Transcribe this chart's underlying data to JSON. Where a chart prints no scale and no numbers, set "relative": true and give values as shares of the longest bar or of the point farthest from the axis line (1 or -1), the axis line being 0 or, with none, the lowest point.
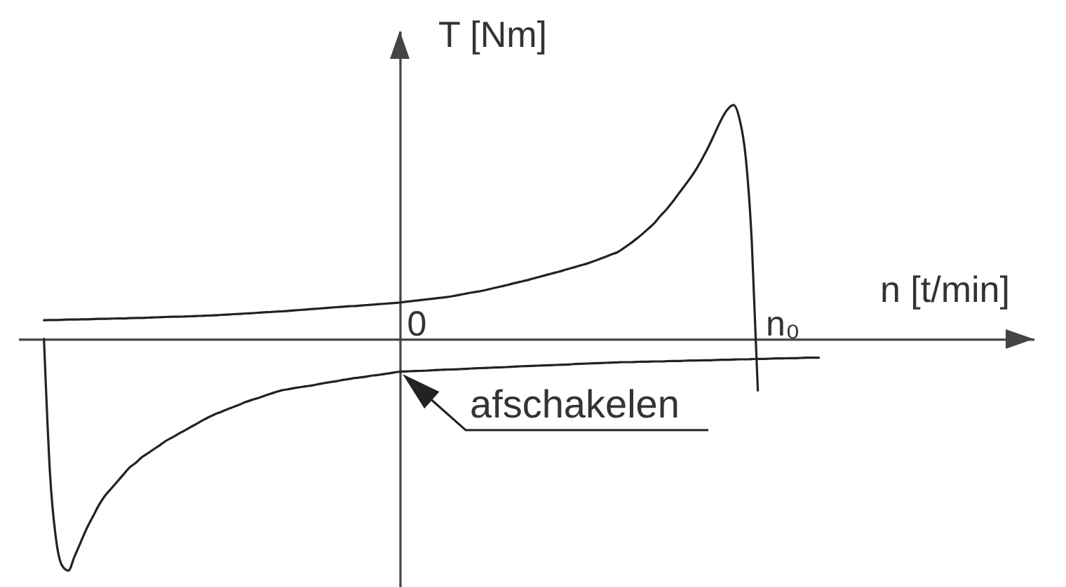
{
  "chart_data": {
    "type": "line",
    "xlabel": "n [t/min]",
    "ylabel": "T [Nm]",
    "relative": true,
    "line_style": "solid",
    "categories": [
      null,
      null,
      null,
      null,
      null,
      null,
      null,
      null,
      null,
      null,
      null,
      null,
      null,
      null,
      null,
      null,
      null,
      null,
      null,
      null,
      null,
      null,
      null,
      null,
      null,
      null,
      null,
      null,
      null,
      null,
      null,
      null,
      null,
      null,
      null,
      null,
      null,
      null,
      null,
      null,
      null,
      null,
      null,
      null,
      null,
      null,
      null,
      null,
      null,
      null,
      null,
      null,
      null,
      null,
      null,
      null,
      null,
      null,
      null,
      null,
      null,
      "0",
      null,
      null,
      null,
      null,
      null,
      null,
      null,
      null,
      null,
      null,
      null,
      null,
      null,
      null,
      null,
      null,
      null,
      null,
      null,
      null,
      null,
      null,
      null,
      null,
      null,
      null,
      null,
      null,
      null,
      null,
      null,
      null,
      null,
      null,
      null,
      null,
      null,
      null,
      null,
      null,
      null,
      null,
      null,
      null,
      null,
      null,
      null,
      null,
      null,
      null,
      null,
      null,
      null,
      null,
      null,
      null,
      null,
      null,
      null,
      "n₀",
      null,
      null,
      null,
      null,
      null,
      null,
      null,
      null,
      null,
      null,
      null,
      null,
      null,
      null,
      null,
      null,
      null,
      null,
      null,
      null,
      null,
      null,
      null,
      null,
      null,
      null,
      null,
      null,
      null,
      null,
      null,
      null,
      null,
      null,
      null,
      null,
      null
    ],
    "series": [
      {
        "color": "#222222",
        "values": [
          0.08,
          0.081,
          0.081,
          0.082,
          0.083,
          0.083,
          0.084,
          0.084,
          0.085,
          0.086,
          0.086,
          0.087,
          0.088,
          0.088,
          0.089,
          0.09,
          0.09,
          0.091,
          0.092,
          0.093,
          0.094,
          0.095,
          0.095,
          0.096,
          0.097,
          0.098,
          0.099,
          0.1,
          0.101,
          0.103,
          0.104,
          0.106,
          0.107,
          0.109,
          0.11,
          0.112,
          0.114,
          0.115,
          0.117,
          0.118,
          0.12,
          0.122,
          0.124,
          0.126,
          0.128,
          0.13,
          0.132,
          0.134,
          0.136,
          0.138,
          0.14,
          0.141,
          0.143,
          0.145,
          0.147,
          0.149,
          0.151,
          0.153,
          0.155,
          0.158,
          0.161,
          0.164,
          0.167,
          0.17,
          0.173,
          0.176,
          0.179,
          0.183,
          0.188,
          0.193,
          0.198,
          0.202,
          0.207,
          0.213,
          0.219,
          0.225,
          0.231,
          0.238,
          0.244,
          0.25,
          0.257,
          0.264,
          0.271,
          0.278,
          0.285,
          0.292,
          0.3,
          0.307,
          0.315,
          0.322,
          0.331,
          0.341,
          0.351,
          0.361,
          0.371,
          0.388,
          0.406,
          0.426,
          0.447,
          0.47,
          0.494,
          0.525,
          0.553,
          0.585,
          0.62,
          0.655,
          0.69,
          0.73,
          0.776,
          0.826,
          0.882,
          0.937,
          0.98,
          1.0,
          0.94,
          0.78,
          0.42,
          -0.22,
          null,
          null,
          null,
          null,
          null,
          null,
          null,
          null,
          null,
          null,
          null,
          null,
          null,
          null,
          null,
          null,
          null,
          null,
          null,
          null,
          null,
          null,
          null,
          null,
          null,
          null,
          null,
          null,
          null,
          null,
          null,
          null,
          null,
          null,
          null,
          null,
          null,
          null,
          null,
          null,
          null
        ]
      },
      {
        "color": "#222222",
        "values": [
          0,
          -0.58,
          -0.86,
          -0.97,
          -0.99,
          -0.93,
          -0.87,
          -0.81,
          -0.76,
          -0.71,
          -0.67,
          -0.64,
          -0.61,
          -0.58,
          -0.55,
          -0.53,
          -0.506,
          -0.489,
          -0.471,
          -0.454,
          -0.435,
          -0.421,
          -0.406,
          -0.392,
          -0.377,
          -0.363,
          -0.348,
          -0.334,
          -0.322,
          -0.312,
          -0.301,
          -0.291,
          -0.281,
          -0.27,
          -0.261,
          -0.253,
          -0.244,
          -0.235,
          -0.227,
          -0.219,
          -0.215,
          -0.21,
          -0.206,
          -0.202,
          -0.198,
          -0.193,
          -0.188,
          -0.184,
          -0.18,
          -0.175,
          -0.171,
          -0.167,
          -0.164,
          -0.16,
          -0.156,
          -0.153,
          -0.149,
          -0.145,
          -0.141,
          -0.139,
          -0.138,
          -0.137,
          -0.136,
          -0.135,
          -0.133,
          -0.132,
          -0.131,
          -0.13,
          -0.129,
          -0.128,
          -0.126,
          -0.125,
          -0.124,
          -0.123,
          -0.122,
          -0.121,
          -0.12,
          -0.118,
          -0.117,
          -0.116,
          -0.115,
          -0.114,
          -0.113,
          -0.112,
          -0.111,
          -0.11,
          -0.109,
          -0.107,
          -0.106,
          -0.105,
          -0.104,
          -0.103,
          -0.102,
          -0.101,
          -0.1,
          -0.099,
          -0.099,
          -0.098,
          -0.097,
          -0.097,
          -0.096,
          -0.096,
          -0.095,
          -0.094,
          -0.094,
          -0.093,
          -0.092,
          -0.092,
          -0.091,
          -0.091,
          -0.09,
          -0.089,
          -0.089,
          -0.088,
          -0.087,
          -0.087,
          -0.086,
          -0.085,
          -0.085,
          -0.084,
          -0.083,
          -0.083,
          -0.082,
          -0.082,
          -0.081,
          -0.08,
          -0.08,
          -0.08,
          null,
          null,
          null,
          null,
          null,
          null,
          null,
          null,
          null,
          null,
          null,
          null,
          null,
          null,
          null,
          null,
          null,
          null,
          null,
          null,
          null,
          null,
          null,
          null,
          null,
          null,
          null,
          null,
          null,
          null,
          null
        ]
      }
    ],
    "annotations": [
      "afschakelen"
    ]
  }
}
